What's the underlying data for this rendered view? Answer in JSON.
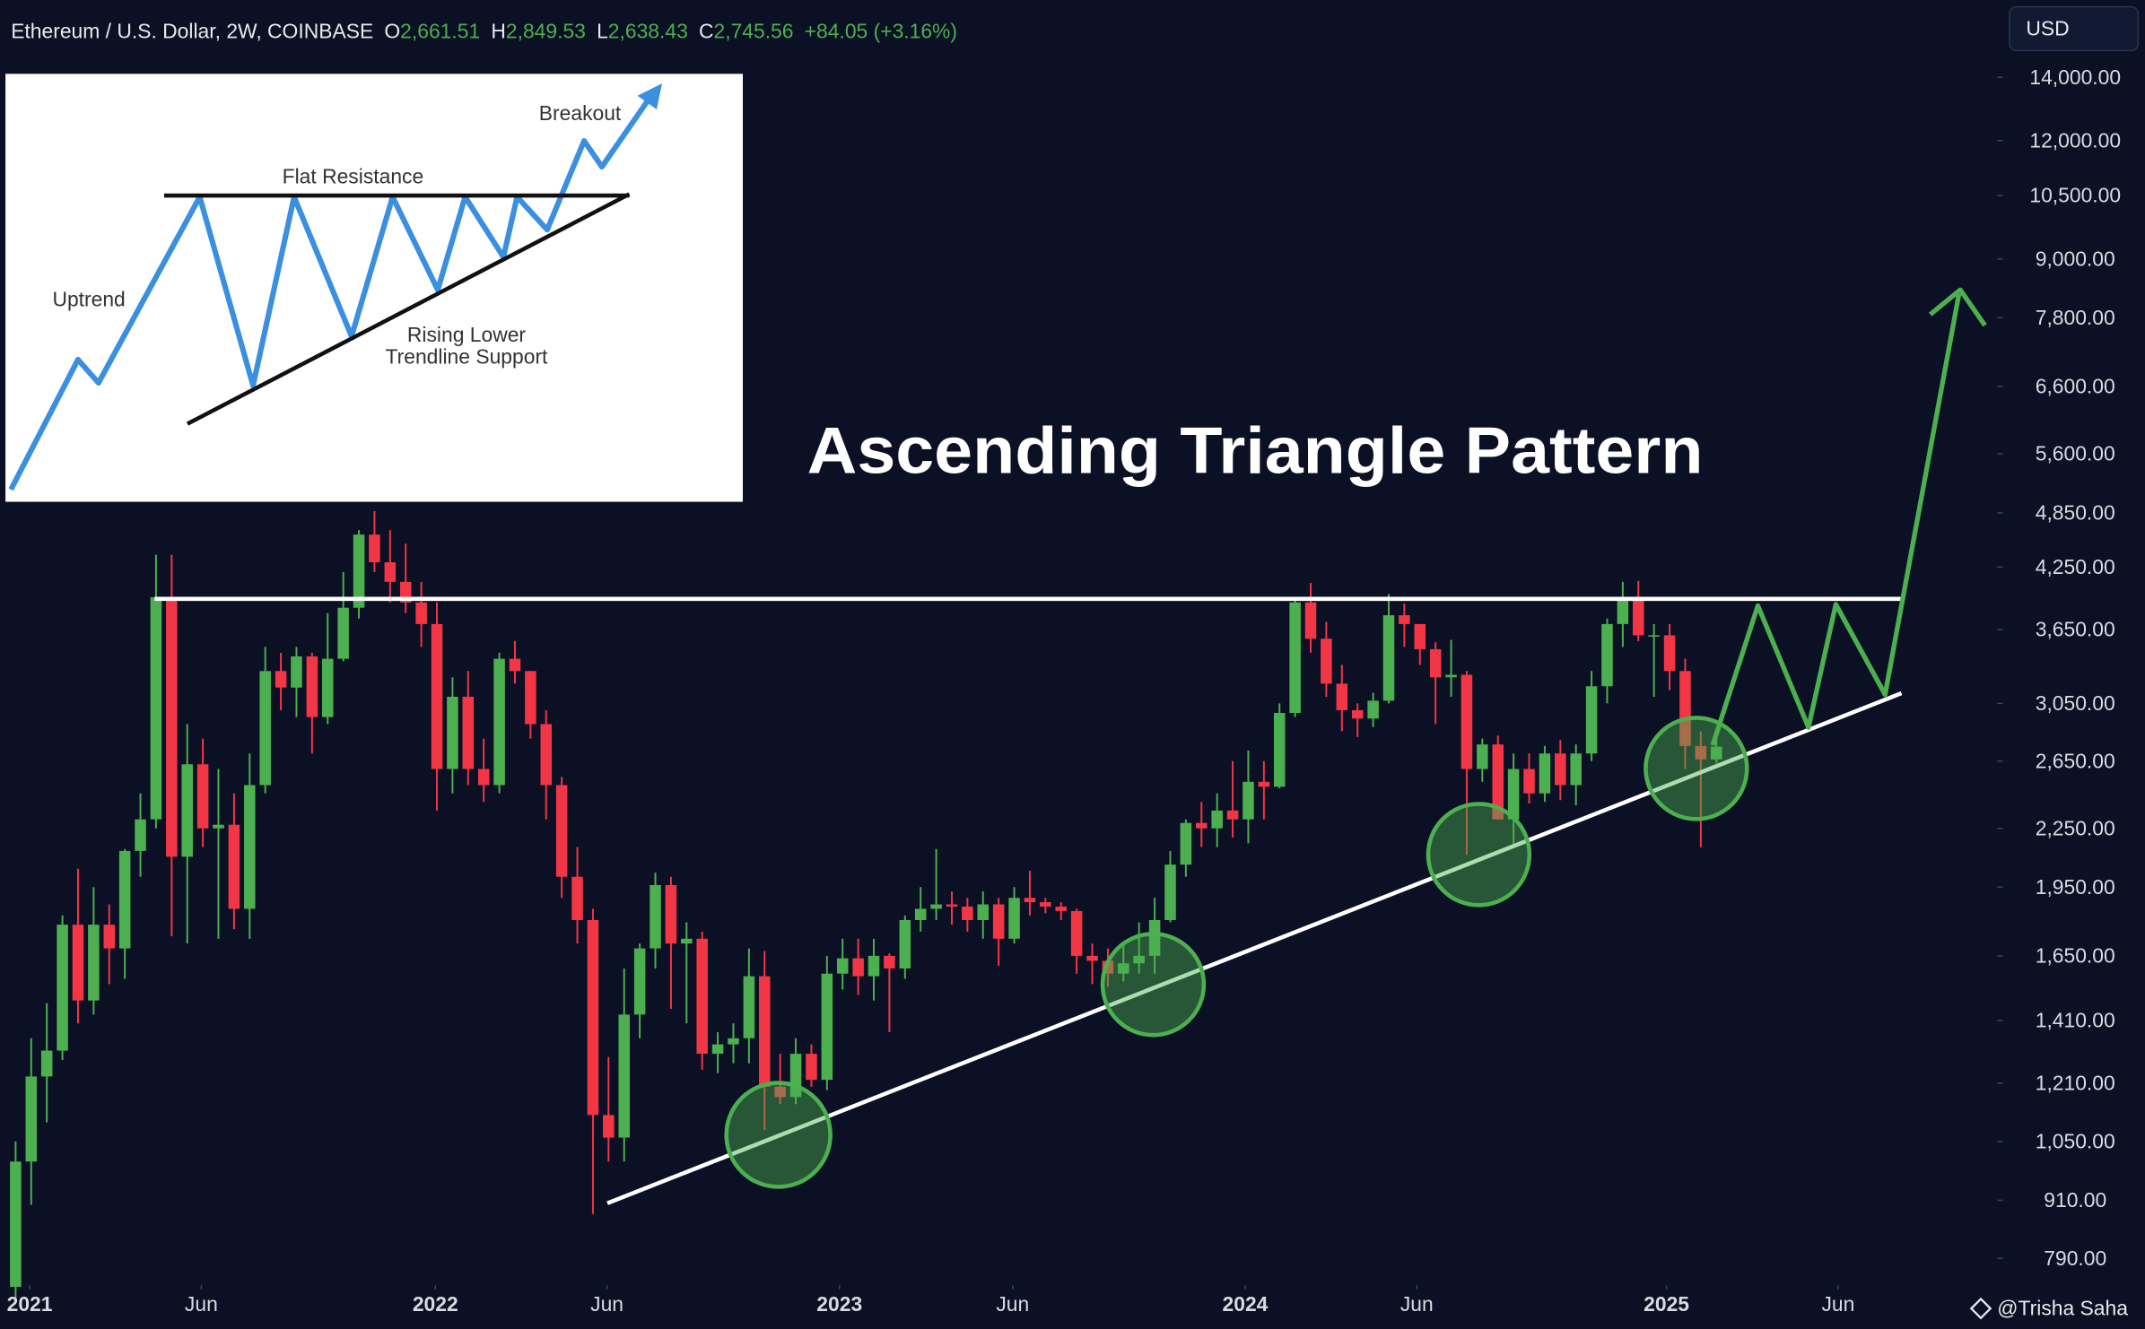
{
  "header": {
    "symbol": "Ethereum / U.S. Dollar, 2W, COINBASE",
    "o_label": "O",
    "open": "2,661.51",
    "h_label": "H",
    "high": "2,849.53",
    "l_label": "L",
    "low": "2,638.43",
    "c_label": "C",
    "close": "2,745.56",
    "change": "+84.05 (+3.16%)",
    "currency": "USD"
  },
  "inset": {
    "breakout": "Breakout",
    "resistance": "Flat Resistance",
    "uptrend": "Uptrend",
    "support_line1": "Rising Lower",
    "support_line2": "Trendline Support"
  },
  "watermark": "@Trisha Saha",
  "chart_data": {
    "type": "candlestick",
    "title": "Ascending Triangle Pattern",
    "log_scale": true,
    "grid": false,
    "up_color": "#4caf50",
    "down_color": "#f23645",
    "categories": [
      null,
      null,
      null,
      null,
      null,
      null,
      null,
      null,
      null,
      null,
      null,
      null,
      null,
      null,
      null,
      null,
      null,
      null,
      null,
      null,
      null,
      null,
      null,
      null,
      null,
      null,
      null,
      null,
      null,
      null,
      null,
      null,
      null,
      null,
      null,
      null,
      null,
      null,
      null,
      null,
      null,
      null,
      null,
      null,
      null,
      null,
      null,
      null,
      null,
      null,
      null,
      null,
      null,
      null,
      null,
      null,
      null,
      null,
      null,
      null,
      null,
      null,
      null,
      null,
      null,
      null,
      null,
      null,
      null,
      null,
      null,
      null,
      null,
      null,
      null,
      null,
      null,
      null,
      null,
      null,
      null,
      null,
      null,
      null,
      null,
      null,
      null,
      null,
      null,
      null,
      null,
      null,
      null,
      null,
      null,
      null,
      null,
      null,
      null,
      null,
      null,
      null,
      null,
      null,
      null,
      null,
      null,
      null,
      null,
      null
    ],
    "open": [
      737,
      1000,
      1230,
      1310,
      1780,
      1480,
      1780,
      1680,
      2130,
      2300,
      3950,
      2100,
      2630,
      2250,
      2270,
      1850,
      2500,
      3300,
      3170,
      3420,
      2950,
      3400,
      3850,
      4600,
      4300,
      4100,
      3900,
      3700,
      2600,
      3100,
      2600,
      2500,
      3400,
      3300,
      2900,
      2500,
      2000,
      1800,
      1120,
      1060,
      1430,
      1680,
      1960,
      1700,
      1720,
      1300,
      1330,
      1350,
      1570,
      1200,
      1170,
      1300,
      1220,
      1580,
      1640,
      1570,
      1650,
      1600,
      1800,
      1850,
      1870,
      1860,
      1800,
      1870,
      1720,
      1900,
      1880,
      1860,
      1840,
      1650,
      1630,
      1580,
      1620,
      1650,
      1800,
      2060,
      2280,
      2250,
      2350,
      2300,
      2520,
      2490,
      2980,
      3900,
      3570,
      3200,
      3000,
      2940,
      3070,
      3780,
      3700,
      3480,
      3250,
      3270,
      2600,
      2760,
      2300,
      2600,
      2450,
      2700,
      2500,
      2700,
      3180,
      3700,
      3950,
      3600,
      3600,
      3300,
      2750,
      2661.51
    ],
    "high": [
      1050,
      1350,
      1470,
      1820,
      2040,
      1950,
      1870,
      2140,
      2450,
      4380,
      4380,
      2900,
      2800,
      2600,
      2450,
      2700,
      3500,
      3450,
      3500,
      3450,
      3800,
      4200,
      4650,
      4870,
      4650,
      4500,
      4100,
      3900,
      3250,
      3300,
      2800,
      3450,
      3550,
      3300,
      3000,
      2550,
      2150,
      1850,
      1290,
      1600,
      1700,
      2020,
      2000,
      1790,
      1750,
      1370,
      1400,
      1680,
      1670,
      1300,
      1350,
      1330,
      1650,
      1720,
      1720,
      1720,
      1660,
      1820,
      1950,
      2140,
      1930,
      1900,
      1930,
      1900,
      1950,
      2030,
      1900,
      1880,
      1850,
      1700,
      1680,
      1700,
      1790,
      1900,
      2130,
      2300,
      2400,
      2450,
      2650,
      2720,
      2650,
      3050,
      3950,
      4090,
      3720,
      3350,
      3050,
      3130,
      3980,
      3890,
      3700,
      3540,
      3560,
      3300,
      2800,
      2820,
      2700,
      2700,
      2750,
      2790,
      2760,
      3300,
      3750,
      4100,
      4110,
      3700,
      3700,
      3400,
      2850,
      2849.53
    ],
    "low": [
      714,
      900,
      1100,
      1280,
      1400,
      1430,
      1540,
      1560,
      2000,
      2250,
      1730,
      1700,
      2150,
      1720,
      1760,
      1720,
      2450,
      3000,
      2950,
      2700,
      2900,
      3380,
      3750,
      4200,
      3900,
      3800,
      3500,
      2350,
      2450,
      2500,
      2400,
      2450,
      3200,
      2800,
      2300,
      1900,
      1700,
      880,
      1000,
      1000,
      1350,
      1600,
      1450,
      1400,
      1250,
      1240,
      1270,
      1270,
      1080,
      1150,
      1150,
      1200,
      1190,
      1520,
      1500,
      1480,
      1370,
      1560,
      1750,
      1800,
      1780,
      1750,
      1720,
      1610,
      1700,
      1820,
      1830,
      1800,
      1580,
      1540,
      1530,
      1550,
      1580,
      1580,
      1790,
      2000,
      2150,
      2150,
      2200,
      2170,
      2300,
      2480,
      2950,
      3450,
      3100,
      2850,
      2810,
      2880,
      3050,
      3500,
      3350,
      2900,
      3100,
      2110,
      2520,
      2300,
      2150,
      2390,
      2400,
      2410,
      2380,
      2650,
      3050,
      3500,
      3550,
      3100,
      3150,
      2600,
      2150,
      2638.43
    ],
    "close": [
      1000,
      1230,
      1310,
      1780,
      1480,
      1780,
      1680,
      2130,
      2300,
      3950,
      2100,
      2630,
      2250,
      2270,
      1850,
      2500,
      3300,
      3170,
      3420,
      2950,
      3400,
      3850,
      4600,
      4300,
      4100,
      3900,
      3700,
      2600,
      3100,
      2600,
      2500,
      3400,
      3300,
      2900,
      2500,
      2000,
      1800,
      1120,
      1060,
      1430,
      1680,
      1960,
      1700,
      1720,
      1300,
      1330,
      1350,
      1570,
      1200,
      1170,
      1300,
      1220,
      1580,
      1640,
      1570,
      1650,
      1600,
      1800,
      1850,
      1870,
      1860,
      1800,
      1870,
      1720,
      1900,
      1880,
      1860,
      1840,
      1650,
      1630,
      1580,
      1620,
      1650,
      1800,
      2060,
      2280,
      2250,
      2350,
      2300,
      2520,
      2490,
      2980,
      3900,
      3570,
      3200,
      3000,
      2940,
      3070,
      3780,
      3700,
      3480,
      3250,
      3270,
      2600,
      2760,
      2300,
      2600,
      2450,
      2700,
      2500,
      2700,
      3180,
      3700,
      3950,
      3600,
      3600,
      3300,
      2750,
      2661.51,
      2745.56
    ],
    "xlim": [
      -1,
      127
    ],
    "xticks": [
      {
        "value": 0.9,
        "label": "2021"
      },
      {
        "value": 11.9,
        "label": "Jun"
      },
      {
        "value": 26.9,
        "label": "2022"
      },
      {
        "value": 37.9,
        "label": "Jun"
      },
      {
        "value": 52.8,
        "label": "2023"
      },
      {
        "value": 63.9,
        "label": "Jun"
      },
      {
        "value": 78.8,
        "label": "2024"
      },
      {
        "value": 89.8,
        "label": "Jun"
      },
      {
        "value": 105.8,
        "label": "2025"
      },
      {
        "value": 116.8,
        "label": "Jun"
      }
    ],
    "ylim": [
      740,
      16900
    ],
    "yticks": [
      {
        "value": 14000,
        "label": "14,000.00"
      },
      {
        "value": 12000,
        "label": "12,000.00"
      },
      {
        "value": 10500,
        "label": "10,500.00"
      },
      {
        "value": 9000,
        "label": "9,000.00"
      },
      {
        "value": 7800,
        "label": "7,800.00"
      },
      {
        "value": 6600,
        "label": "6,600.00"
      },
      {
        "value": 5600,
        "label": "5,600.00"
      },
      {
        "value": 4850,
        "label": "4,850.00"
      },
      {
        "value": 4250,
        "label": "4,250.00"
      },
      {
        "value": 3650,
        "label": "3,650.00"
      },
      {
        "value": 3050,
        "label": "3,050.00"
      },
      {
        "value": 2650,
        "label": "2,650.00"
      },
      {
        "value": 2250,
        "label": "2,250.00"
      },
      {
        "value": 1950,
        "label": "1,950.00"
      },
      {
        "value": 1650,
        "label": "1,650.00"
      },
      {
        "value": 1410,
        "label": "1,410.00"
      },
      {
        "value": 1210,
        "label": "1,210.00"
      },
      {
        "value": 1050,
        "label": "1,050.00"
      },
      {
        "value": 910,
        "label": "910.00"
      },
      {
        "value": 790,
        "label": "790.00"
      }
    ]
  }
}
